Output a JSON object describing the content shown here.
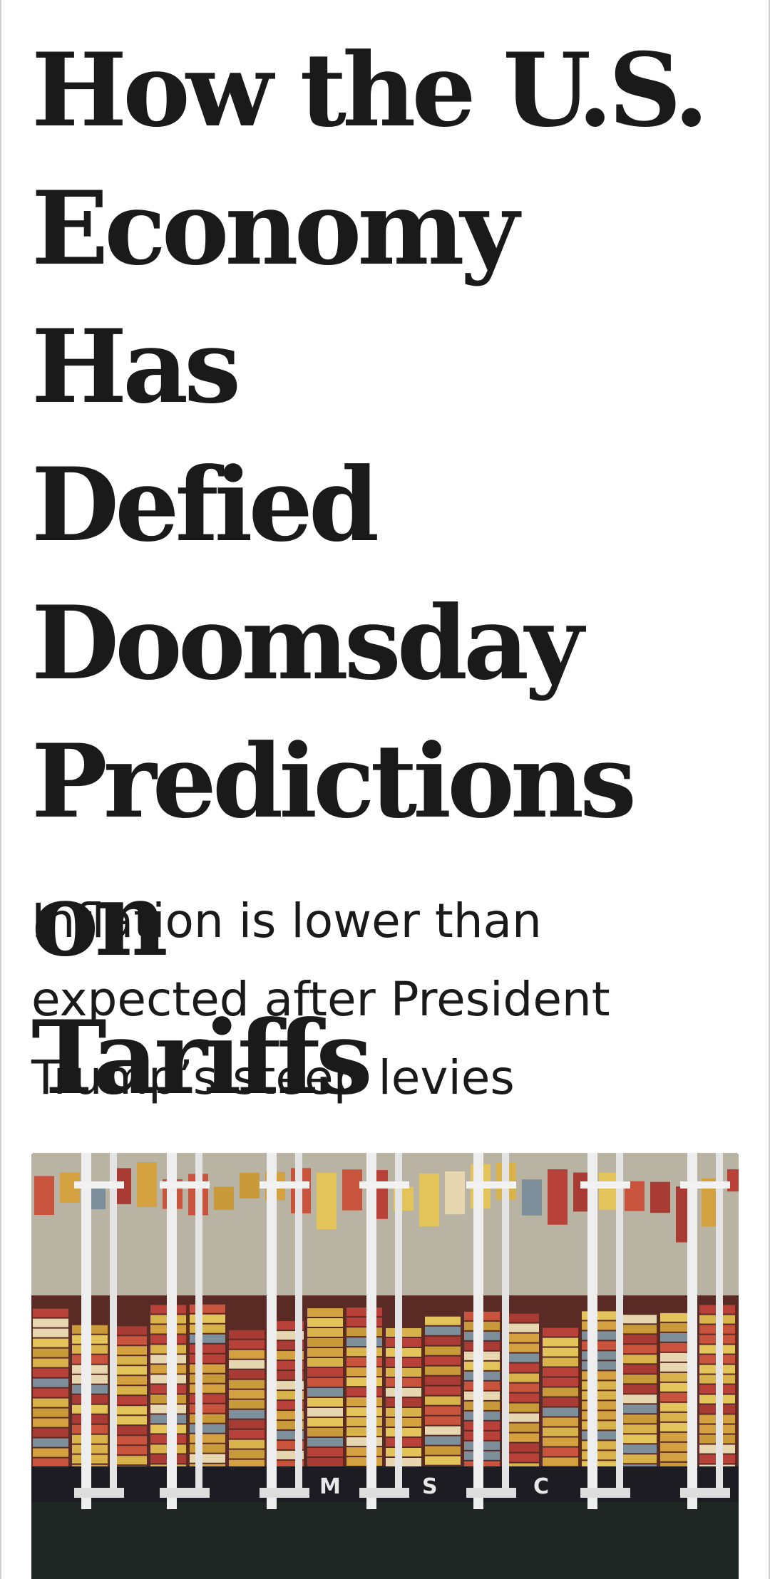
{
  "article": {
    "headline": "How the U.S.\nEconomy Has\nDefied\nDoomsday\nPredictions on\nTariffs",
    "dek": "Inflation is lower than\nexpected after President\nTrump’s steep levies"
  },
  "photo": {
    "subject": "container-ship-at-port",
    "ship_lettering": [
      "M",
      "S",
      "C"
    ]
  },
  "colors": {
    "text": "#1a1a1a",
    "background": "#ffffff",
    "water": "#1f2624",
    "dock": "#b9b3a3",
    "crane": "#eeeeee"
  }
}
